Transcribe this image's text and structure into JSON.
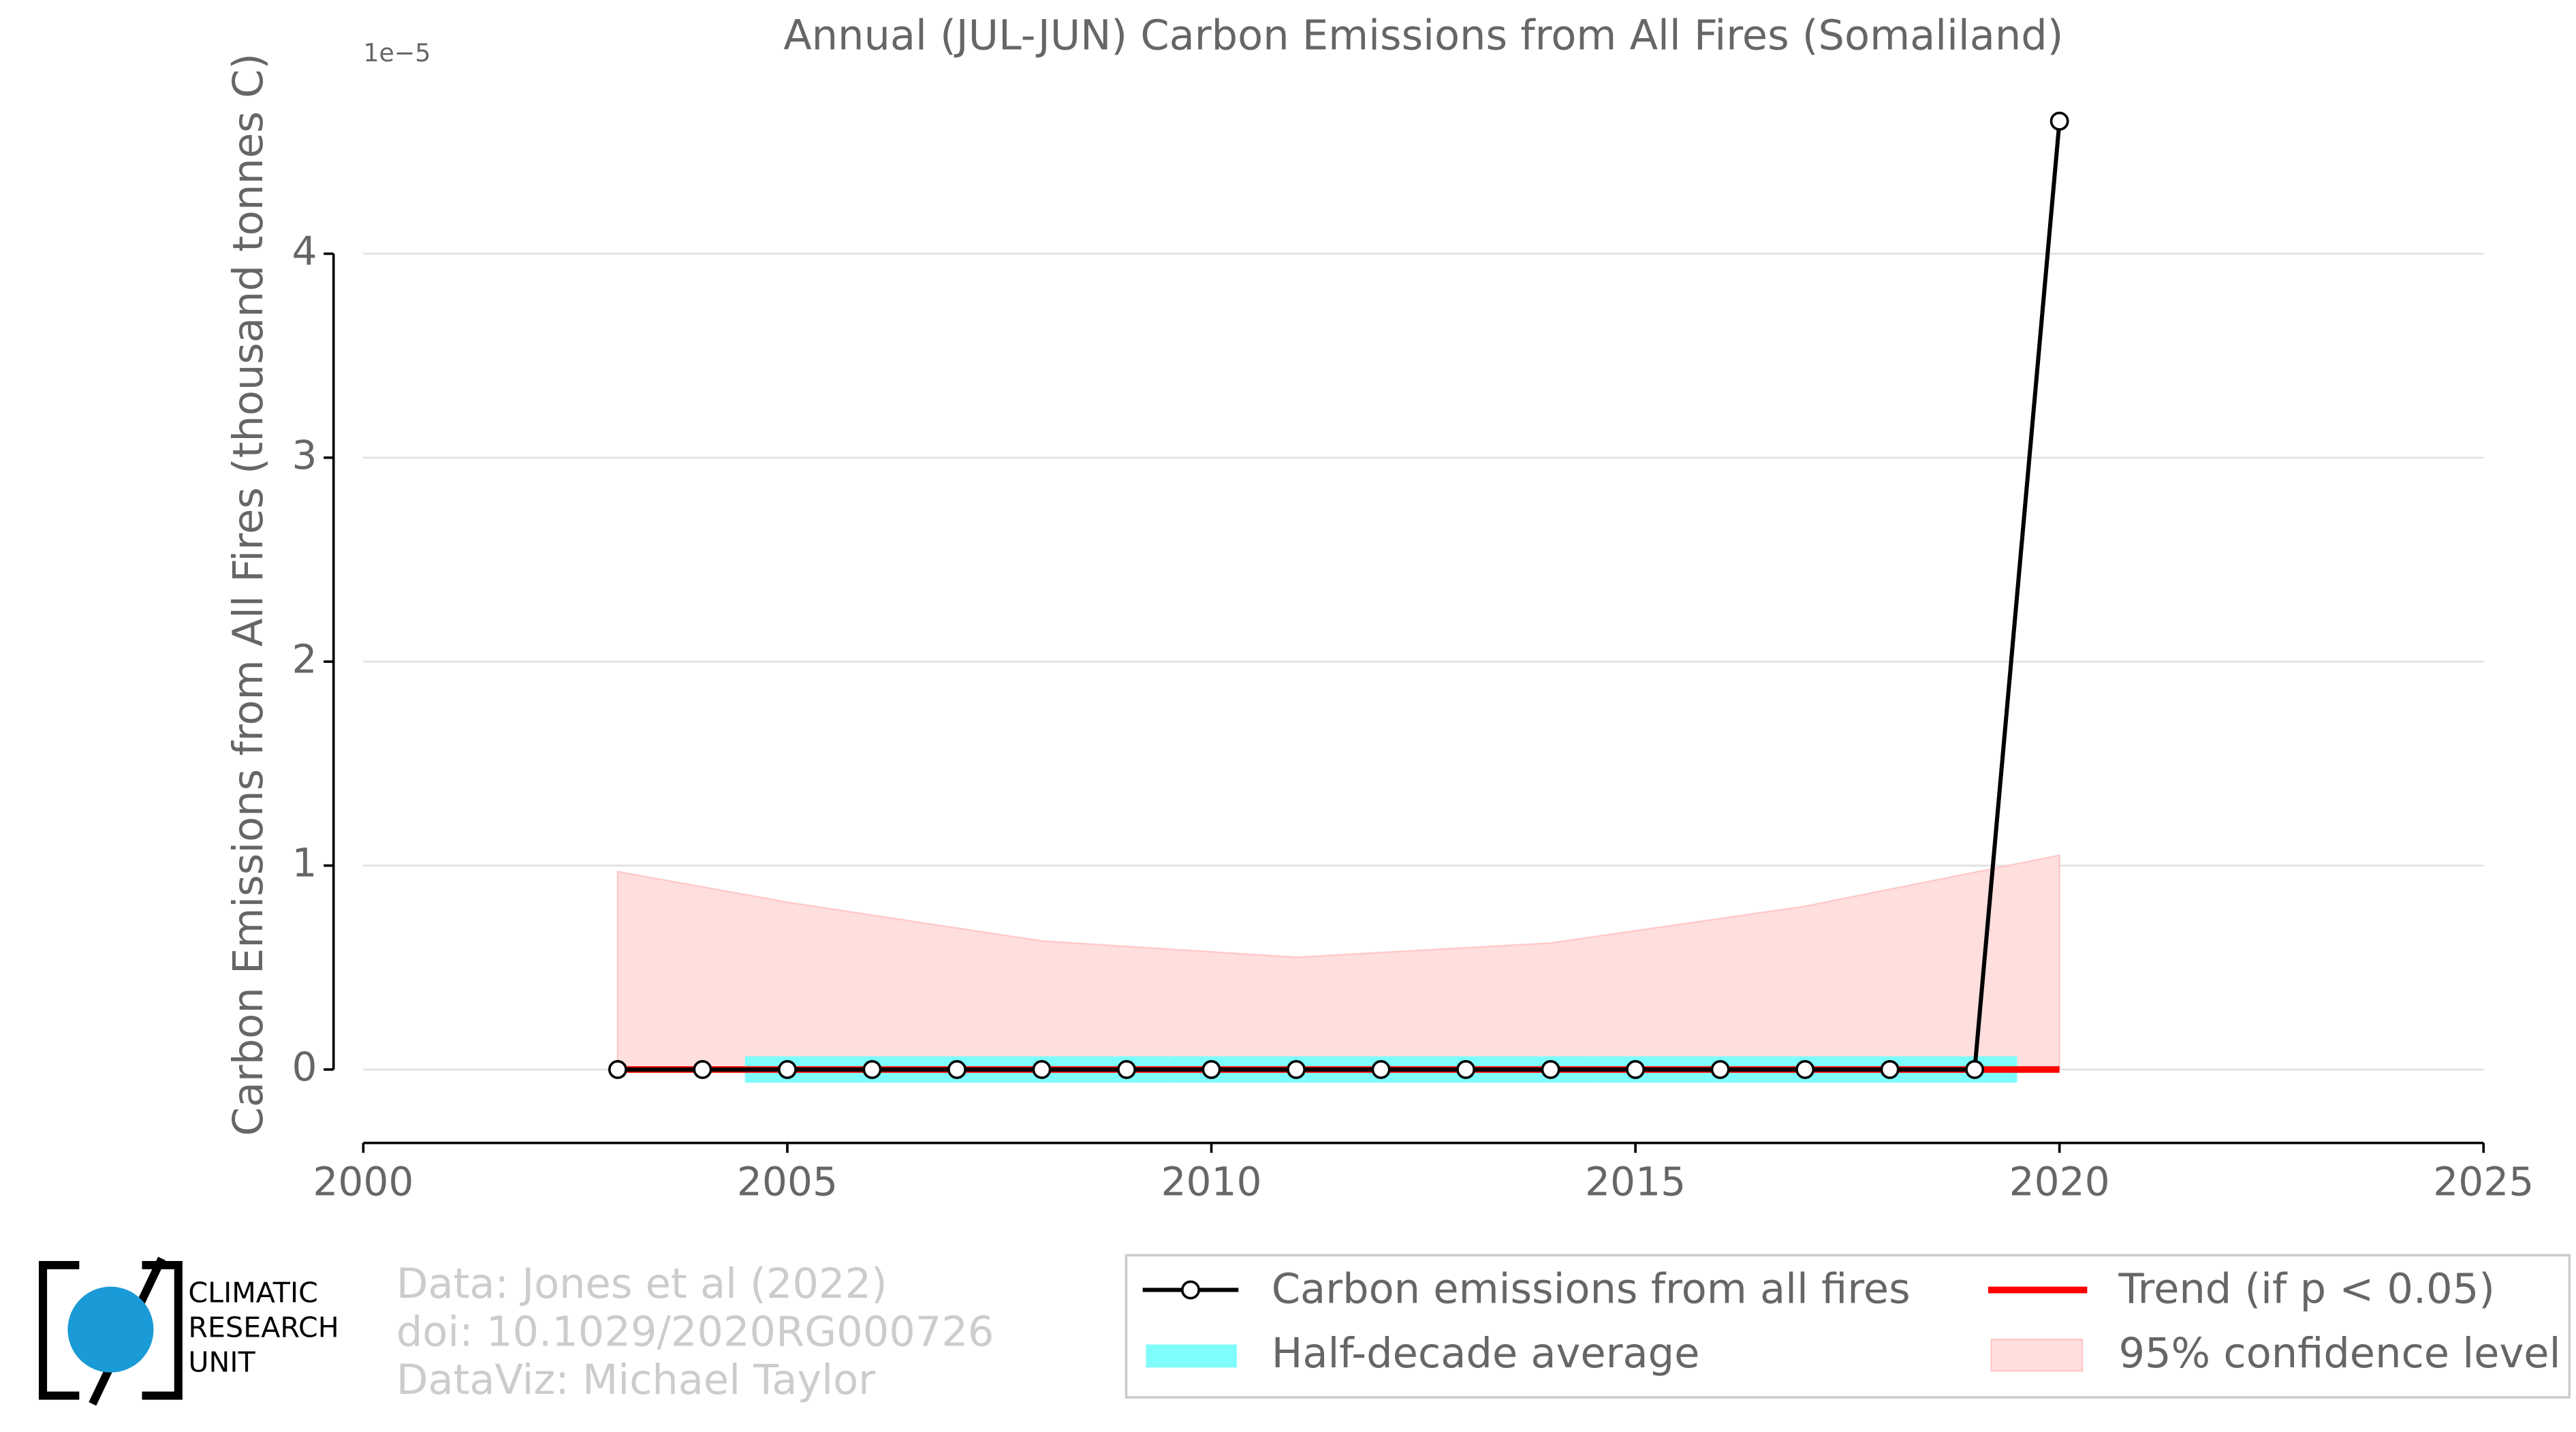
{
  "chart_data": {
    "type": "line",
    "title": "Annual (JUL-JUN) Carbon Emissions from All Fires (Somaliland)",
    "y_label": "Carbon Emissions from All Fires (thousand tonnes C)",
    "y_multiplier": "1e−5",
    "xlim": [
      2000,
      2025
    ],
    "xticks": [
      2000,
      2005,
      2010,
      2015,
      2020,
      2025
    ],
    "ylim": [
      -0.36,
      4.92
    ],
    "yticks": [
      0,
      1,
      2,
      3,
      4
    ],
    "grid": true,
    "x": [
      2003,
      2004,
      2005,
      2006,
      2007,
      2008,
      2009,
      2010,
      2011,
      2012,
      2013,
      2014,
      2015,
      2016,
      2017,
      2018,
      2019,
      2020
    ],
    "series": [
      {
        "name": "Carbon emissions from all fires",
        "color": "#000000",
        "values": [
          0,
          0,
          0,
          0,
          0,
          0,
          0,
          0,
          0,
          0,
          0,
          0,
          0,
          0,
          0,
          0,
          0,
          4.65
        ]
      }
    ],
    "half_decade": {
      "name": "Half-decade average",
      "color": "#7ffcfc",
      "x_start": [
        2004.5,
        2009.5,
        2014.5
      ],
      "x_end": [
        2009.5,
        2014.5,
        2019.5
      ],
      "values": [
        0,
        0,
        0
      ]
    },
    "trend": {
      "name": "Trend (if p < 0.05)",
      "color": "#ff0000",
      "x": [
        2003,
        2020
      ],
      "values": [
        0,
        0
      ]
    },
    "confidence": {
      "name": "95% confidence level",
      "color": "#ffdede",
      "x": [
        2003,
        2005,
        2008,
        2011,
        2014,
        2017,
        2020
      ],
      "upper": [
        0.97,
        0.82,
        0.63,
        0.55,
        0.62,
        0.8,
        1.05
      ],
      "lower": [
        0,
        0,
        0,
        0,
        0,
        0,
        0
      ]
    },
    "logo": [
      "CLIMATIC",
      "RESEARCH",
      "UNIT"
    ],
    "credits": [
      "Data: Jones et al (2022)",
      "doi: 10.1029/2020RG000726",
      "DataViz: Michael Taylor"
    ]
  }
}
